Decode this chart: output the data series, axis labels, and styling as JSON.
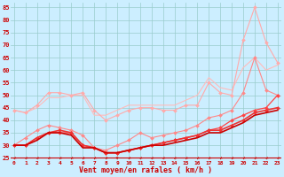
{
  "xlabel": "Vent moyen/en rafales ( km/h )",
  "background_color": "#cceeff",
  "grid_color": "#99cccc",
  "x": [
    0,
    1,
    2,
    3,
    4,
    5,
    6,
    7,
    8,
    9,
    10,
    11,
    12,
    13,
    14,
    15,
    16,
    17,
    18,
    19,
    20,
    21,
    22,
    23
  ],
  "ylim": [
    24,
    87
  ],
  "yticks": [
    25,
    30,
    35,
    40,
    45,
    50,
    55,
    60,
    65,
    70,
    75,
    80,
    85
  ],
  "lines": [
    {
      "color": "#ffaaaa",
      "values": [
        44,
        43,
        46,
        51,
        51,
        50,
        51,
        44,
        40,
        42,
        44,
        45,
        45,
        44,
        44,
        46,
        46,
        55,
        51,
        50,
        72,
        85,
        71,
        63
      ],
      "lw": 0.8,
      "marker": "D",
      "ms": 2.0,
      "zorder": 3
    },
    {
      "color": "#ffbbbb",
      "values": [
        44,
        43,
        45,
        49,
        49,
        50,
        50,
        42,
        42,
        44,
        46,
        46,
        46,
        46,
        46,
        48,
        50,
        57,
        53,
        52,
        61,
        65,
        60,
        62
      ],
      "lw": 0.8,
      "marker": null,
      "ms": 0,
      "zorder": 2
    },
    {
      "color": "#ff8888",
      "values": [
        30,
        33,
        36,
        38,
        37,
        36,
        34,
        29,
        28,
        30,
        32,
        35,
        33,
        34,
        35,
        36,
        38,
        41,
        42,
        44,
        51,
        65,
        52,
        50
      ],
      "lw": 0.8,
      "marker": "D",
      "ms": 2.0,
      "zorder": 3
    },
    {
      "color": "#ee3333",
      "values": [
        30,
        30,
        33,
        35,
        36,
        35,
        30,
        29,
        27,
        27,
        28,
        29,
        30,
        31,
        32,
        33,
        34,
        36,
        36,
        38,
        40,
        43,
        44,
        45
      ],
      "lw": 1.2,
      "marker": "D",
      "ms": 2.0,
      "zorder": 4
    },
    {
      "color": "#cc0000",
      "values": [
        30,
        30,
        32,
        35,
        35,
        34,
        29,
        29,
        27,
        27,
        28,
        29,
        30,
        30,
        31,
        32,
        33,
        35,
        35,
        37,
        39,
        42,
        43,
        44
      ],
      "lw": 1.2,
      "marker": null,
      "ms": 0,
      "zorder": 4
    },
    {
      "color": "#ff4444",
      "values": [
        30,
        30,
        33,
        35,
        35,
        35,
        30,
        29,
        27,
        27,
        28,
        29,
        30,
        31,
        32,
        33,
        34,
        36,
        37,
        40,
        42,
        44,
        45,
        50
      ],
      "lw": 0.9,
      "marker": "D",
      "ms": 2.0,
      "zorder": 3
    }
  ],
  "arrow_color": "#cc0000",
  "spine_color": "#cc0000"
}
